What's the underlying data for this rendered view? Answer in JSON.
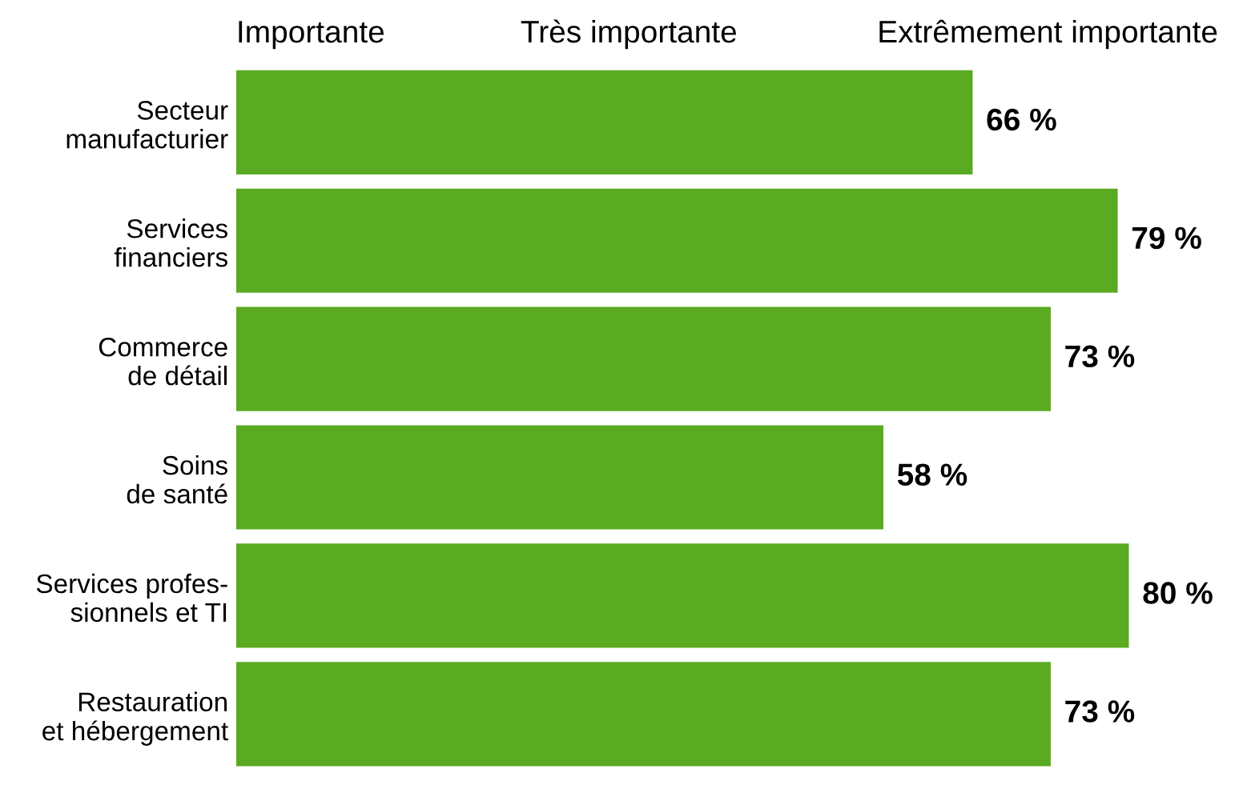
{
  "chart_data": {
    "type": "bar",
    "orientation": "horizontal",
    "categories": [
      "Secteur\nmanufacturier",
      "Services\nfinanciers",
      "Commerce\nde détail",
      "Soins\nde santé",
      "Services profes-\nsionnels et TI",
      "Restauration\net hébergement"
    ],
    "values": [
      66,
      79,
      73,
      58,
      80,
      73
    ],
    "value_labels": [
      "66 %",
      "79 %",
      "73 %",
      "58 %",
      "80 %",
      "73 %"
    ],
    "color": "#5aaa22",
    "annotations": [
      "Importante",
      "Très importante",
      "Extrêmement importante"
    ],
    "tick_labels": "y"
  }
}
